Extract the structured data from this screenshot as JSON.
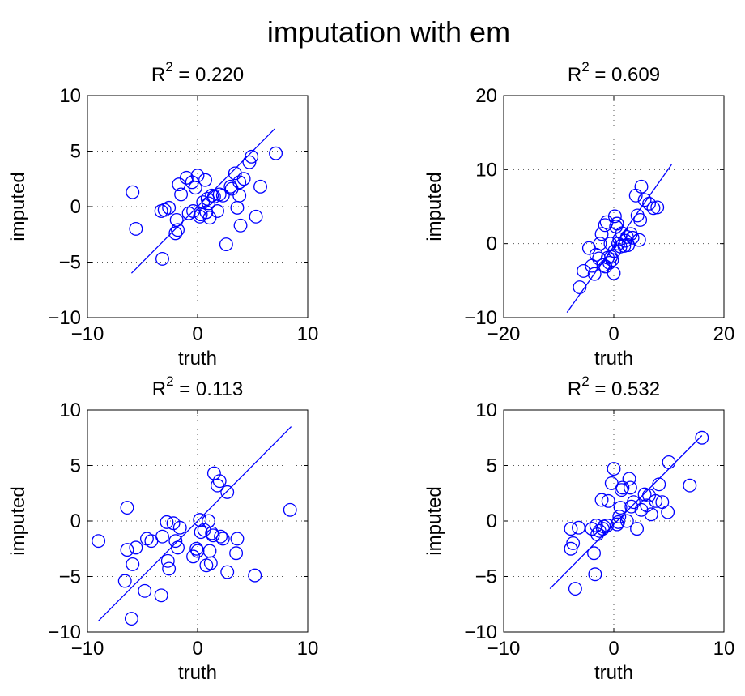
{
  "figure": {
    "title": "imputation with em"
  },
  "chart_data": [
    {
      "type": "scatter",
      "title_prefix": "R",
      "title_exp": "2",
      "title_suffix": " = 0.220",
      "xlabel": "truth",
      "ylabel": "imputed",
      "xlim": [
        -10,
        10
      ],
      "ylim": [
        -10,
        10
      ],
      "xticks": [
        -10,
        0,
        10
      ],
      "yticks": [
        -10,
        -5,
        0,
        5,
        10
      ],
      "grid": true,
      "marker": "circle",
      "color": "#0000ff",
      "fit_line": [
        [
          -6,
          -6
        ],
        [
          7,
          7
        ]
      ],
      "points": [
        [
          -5.9,
          1.3
        ],
        [
          -5.6,
          -2.0
        ],
        [
          -3.2,
          -4.7
        ],
        [
          -3.3,
          -0.4
        ],
        [
          -3.0,
          -0.3
        ],
        [
          -2.6,
          -0.1
        ],
        [
          -2.0,
          -2.4
        ],
        [
          -1.8,
          -2.1
        ],
        [
          -1.9,
          -1.2
        ],
        [
          -1.7,
          2.0
        ],
        [
          -1.5,
          1.1
        ],
        [
          -1.0,
          2.6
        ],
        [
          -0.8,
          -0.6
        ],
        [
          -0.5,
          2.2
        ],
        [
          -0.4,
          -0.4
        ],
        [
          -0.2,
          1.7
        ],
        [
          0.0,
          2.8
        ],
        [
          0.2,
          -0.9
        ],
        [
          0.3,
          -0.7
        ],
        [
          0.5,
          0.4
        ],
        [
          0.7,
          2.4
        ],
        [
          0.8,
          -0.5
        ],
        [
          0.9,
          0.7
        ],
        [
          1.0,
          0.3
        ],
        [
          1.1,
          -1.0
        ],
        [
          1.3,
          1.0
        ],
        [
          1.5,
          0.9
        ],
        [
          1.8,
          -0.4
        ],
        [
          2.0,
          1.1
        ],
        [
          2.3,
          1.0
        ],
        [
          2.6,
          -3.4
        ],
        [
          3.0,
          1.8
        ],
        [
          3.1,
          1.6
        ],
        [
          3.4,
          3.0
        ],
        [
          3.6,
          -0.1
        ],
        [
          3.8,
          2.2
        ],
        [
          3.8,
          1.0
        ],
        [
          3.9,
          -1.7
        ],
        [
          4.2,
          2.5
        ],
        [
          4.7,
          4.0
        ],
        [
          4.9,
          4.5
        ],
        [
          5.3,
          -0.9
        ],
        [
          5.7,
          1.8
        ],
        [
          7.1,
          4.8
        ]
      ]
    },
    {
      "type": "scatter",
      "title_prefix": "R",
      "title_exp": "2",
      "title_suffix": " = 0.609",
      "xlabel": "truth",
      "ylabel": "imputed",
      "xlim": [
        -20,
        20
      ],
      "ylim": [
        -10,
        20
      ],
      "xticks": [
        -20,
        0,
        20
      ],
      "yticks": [
        -10,
        0,
        10,
        20
      ],
      "grid": true,
      "marker": "circle",
      "color": "#0000ff",
      "fit_line": [
        [
          -8.5,
          -9.3
        ],
        [
          10.5,
          10.7
        ]
      ],
      "points": [
        [
          -6.2,
          -5.9
        ],
        [
          -5.5,
          -3.7
        ],
        [
          -4.5,
          -0.6
        ],
        [
          -4.0,
          -3.0
        ],
        [
          -3.5,
          -4.1
        ],
        [
          -3.2,
          -1.5
        ],
        [
          -2.7,
          -2.0
        ],
        [
          -2.5,
          0.0
        ],
        [
          -2.2,
          1.3
        ],
        [
          -1.9,
          -2.9
        ],
        [
          -1.6,
          2.5
        ],
        [
          -1.5,
          -3.1
        ],
        [
          -1.3,
          2.9
        ],
        [
          -1.1,
          -1.9
        ],
        [
          -0.8,
          -2.6
        ],
        [
          -0.6,
          0.0
        ],
        [
          -0.5,
          -1.8
        ],
        [
          -0.3,
          -2.2
        ],
        [
          0.0,
          -4.0
        ],
        [
          0.1,
          -1.0
        ],
        [
          0.2,
          3.7
        ],
        [
          0.4,
          2.3
        ],
        [
          0.6,
          2.7
        ],
        [
          0.8,
          0.0
        ],
        [
          1.0,
          0.6
        ],
        [
          1.2,
          -0.4
        ],
        [
          1.5,
          1.4
        ],
        [
          1.9,
          -0.3
        ],
        [
          2.1,
          0.4
        ],
        [
          2.4,
          0.9
        ],
        [
          2.6,
          -0.2
        ],
        [
          3.1,
          1.3
        ],
        [
          3.4,
          0.8
        ],
        [
          4.0,
          6.5
        ],
        [
          4.3,
          3.8
        ],
        [
          4.6,
          0.5
        ],
        [
          4.8,
          3.2
        ],
        [
          5.0,
          7.7
        ],
        [
          5.6,
          5.9
        ],
        [
          6.4,
          5.4
        ],
        [
          7.2,
          4.8
        ],
        [
          7.9,
          4.9
        ]
      ]
    },
    {
      "type": "scatter",
      "title_prefix": "R",
      "title_exp": "2",
      "title_suffix": " = 0.113",
      "xlabel": "truth",
      "ylabel": "imputed",
      "xlim": [
        -10,
        10
      ],
      "ylim": [
        -10,
        10
      ],
      "xticks": [
        -10,
        0,
        10
      ],
      "yticks": [
        -10,
        -5,
        0,
        5,
        10
      ],
      "grid": true,
      "marker": "circle",
      "color": "#0000ff",
      "fit_line": [
        [
          -9,
          -9
        ],
        [
          8.5,
          8.5
        ]
      ],
      "points": [
        [
          -9.0,
          -1.8
        ],
        [
          -6.6,
          -5.4
        ],
        [
          -6.4,
          1.2
        ],
        [
          -6.4,
          -2.6
        ],
        [
          -6.0,
          -8.8
        ],
        [
          -5.9,
          -3.9
        ],
        [
          -5.6,
          -2.4
        ],
        [
          -4.8,
          -6.3
        ],
        [
          -4.6,
          -1.6
        ],
        [
          -4.2,
          -1.8
        ],
        [
          -3.3,
          -6.7
        ],
        [
          -3.2,
          -1.4
        ],
        [
          -2.8,
          -0.1
        ],
        [
          -2.7,
          -3.6
        ],
        [
          -2.6,
          -4.3
        ],
        [
          -2.2,
          -0.2
        ],
        [
          -2.0,
          -1.8
        ],
        [
          -1.8,
          -2.4
        ],
        [
          -1.6,
          -0.6
        ],
        [
          -0.4,
          -3.2
        ],
        [
          -0.1,
          -2.5
        ],
        [
          0.0,
          -2.7
        ],
        [
          0.2,
          0.1
        ],
        [
          0.3,
          -1.0
        ],
        [
          0.6,
          -0.8
        ],
        [
          0.8,
          -4.0
        ],
        [
          1.0,
          0.0
        ],
        [
          1.1,
          -2.7
        ],
        [
          1.2,
          -3.8
        ],
        [
          1.3,
          -1.1
        ],
        [
          1.4,
          -1.3
        ],
        [
          1.5,
          4.3
        ],
        [
          1.8,
          3.2
        ],
        [
          2.0,
          3.6
        ],
        [
          2.1,
          -1.4
        ],
        [
          2.3,
          -1.6
        ],
        [
          2.7,
          2.6
        ],
        [
          2.7,
          -4.6
        ],
        [
          3.6,
          -1.6
        ],
        [
          3.5,
          -2.9
        ],
        [
          5.2,
          -4.9
        ],
        [
          8.4,
          1.0
        ]
      ]
    },
    {
      "type": "scatter",
      "title_prefix": "R",
      "title_exp": "2",
      "title_suffix": " = 0.532",
      "xlabel": "truth",
      "ylabel": "imputed",
      "xlim": [
        -10,
        10
      ],
      "ylim": [
        -10,
        10
      ],
      "xticks": [
        -10,
        0,
        10
      ],
      "yticks": [
        -10,
        -5,
        0,
        5,
        10
      ],
      "grid": true,
      "marker": "circle",
      "color": "#0000ff",
      "fit_line": [
        [
          -5.8,
          -6.1
        ],
        [
          8.0,
          7.7
        ]
      ],
      "points": [
        [
          -3.9,
          -0.7
        ],
        [
          -3.9,
          -2.5
        ],
        [
          -3.7,
          -2.0
        ],
        [
          -3.5,
          -6.1
        ],
        [
          -3.2,
          -0.6
        ],
        [
          -2.0,
          -0.7
        ],
        [
          -1.8,
          -2.9
        ],
        [
          -1.7,
          -4.8
        ],
        [
          -1.6,
          -0.4
        ],
        [
          -1.5,
          -1.2
        ],
        [
          -1.3,
          -0.9
        ],
        [
          -1.1,
          1.9
        ],
        [
          -1.0,
          -0.7
        ],
        [
          -0.9,
          -0.5
        ],
        [
          -0.6,
          -0.4
        ],
        [
          -0.5,
          1.8
        ],
        [
          -0.2,
          3.4
        ],
        [
          0.0,
          4.7
        ],
        [
          0.3,
          -0.3
        ],
        [
          0.4,
          -0.1
        ],
        [
          0.5,
          0.4
        ],
        [
          0.6,
          1.2
        ],
        [
          0.7,
          2.8
        ],
        [
          0.8,
          3.0
        ],
        [
          1.2,
          0.0
        ],
        [
          1.4,
          3.8
        ],
        [
          1.5,
          3.0
        ],
        [
          1.6,
          1.3
        ],
        [
          1.8,
          1.7
        ],
        [
          2.1,
          -0.7
        ],
        [
          2.5,
          1.0
        ],
        [
          2.8,
          2.4
        ],
        [
          3.0,
          1.4
        ],
        [
          3.2,
          2.3
        ],
        [
          3.4,
          0.6
        ],
        [
          3.8,
          1.8
        ],
        [
          4.1,
          3.3
        ],
        [
          4.4,
          1.7
        ],
        [
          4.9,
          0.8
        ],
        [
          5.0,
          5.3
        ],
        [
          6.9,
          3.2
        ],
        [
          8.0,
          7.5
        ]
      ]
    }
  ]
}
